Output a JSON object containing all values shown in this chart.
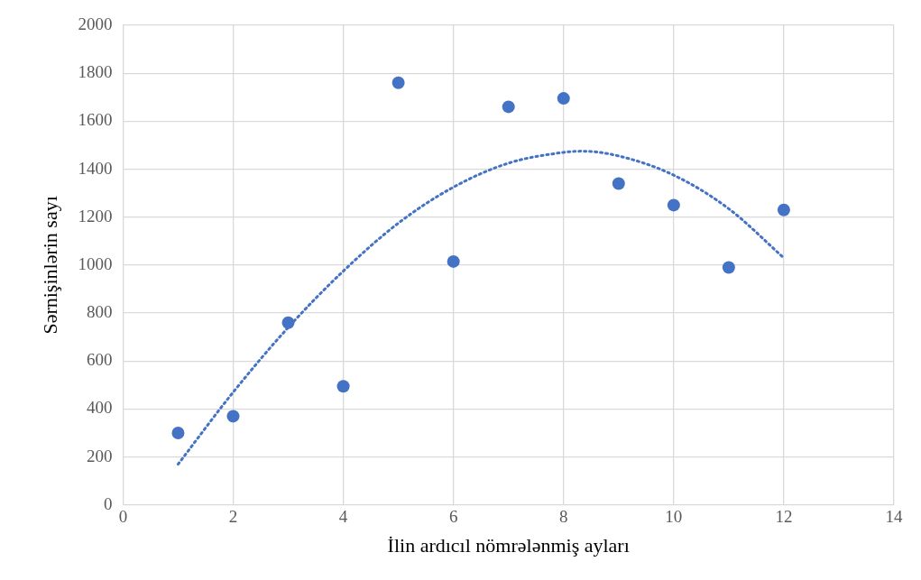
{
  "chart_data": {
    "type": "scatter",
    "xlabel": "İlin ardıcıl nömrələnmiş ayları",
    "ylabel": "Sərnişinlərin sayı",
    "x": [
      1,
      2,
      3,
      4,
      5,
      6,
      7,
      8,
      9,
      10,
      11,
      12
    ],
    "series": [
      {
        "color": "#4472c4",
        "values": [
          300,
          370,
          760,
          495,
          1760,
          1015,
          1660,
          1695,
          1340,
          1250,
          990,
          1230
        ],
        "marker": "circle"
      },
      {
        "type": "line",
        "color": "#4472c4",
        "line_style": "dotted",
        "marker": "none",
        "x": [
          1,
          2,
          3,
          4,
          5,
          6,
          7,
          8,
          8.33,
          9,
          10,
          11,
          12
        ],
        "values": [
          170,
          470,
          740,
          975,
          1175,
          1325,
          1425,
          1470,
          1475,
          1455,
          1375,
          1235,
          1030
        ]
      }
    ],
    "xlim": [
      0,
      14
    ],
    "xticks": [
      0,
      2,
      4,
      6,
      8,
      10,
      12,
      14
    ],
    "ylim": [
      0,
      2000
    ],
    "yticks": [
      0,
      200,
      400,
      600,
      800,
      1000,
      1200,
      1400,
      1600,
      1800,
      2000
    ],
    "grid": true,
    "legend": false
  }
}
